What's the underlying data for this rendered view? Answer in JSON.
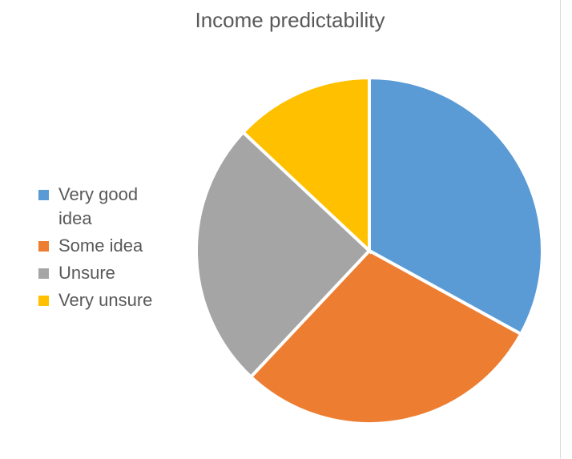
{
  "chart_data": {
    "type": "pie",
    "title": "Income predictability",
    "categories": [
      "Very good idea",
      "Some idea",
      "Unsure",
      "Very unsure"
    ],
    "values": [
      33,
      29,
      25,
      13
    ],
    "colors": [
      "#5B9BD5",
      "#ED7D31",
      "#A5A5A5",
      "#FFC000"
    ],
    "legend_position": "left"
  },
  "legend_display": [
    [
      "Very good",
      "idea"
    ],
    [
      "Some idea"
    ],
    [
      "Unsure"
    ],
    [
      "Very unsure"
    ]
  ]
}
